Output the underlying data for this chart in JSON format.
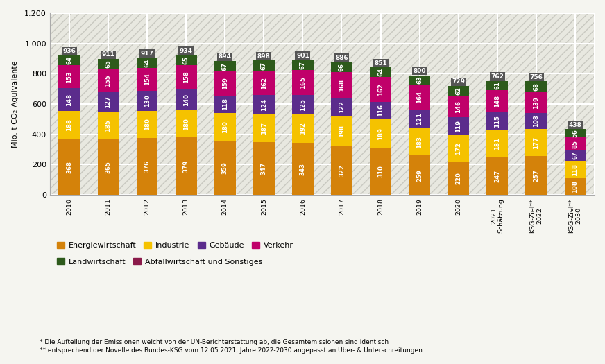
{
  "categories": [
    "2010",
    "2011",
    "2012",
    "2013",
    "2014",
    "2015",
    "2016",
    "2017",
    "2018",
    "2019",
    "2020",
    "2021\nSchätzung",
    "KSG-Ziel**\n2022",
    "KSG-Ziel**\n2030"
  ],
  "energiewirtschaft": [
    368,
    365,
    376,
    379,
    359,
    347,
    343,
    322,
    310,
    259,
    220,
    247,
    257,
    108
  ],
  "industrie": [
    188,
    185,
    180,
    180,
    180,
    187,
    192,
    198,
    189,
    183,
    172,
    181,
    177,
    118
  ],
  "gebaeude": [
    148,
    127,
    130,
    140,
    118,
    124,
    125,
    122,
    116,
    121,
    119,
    115,
    108,
    67
  ],
  "verkehr": [
    153,
    155,
    154,
    158,
    159,
    162,
    165,
    168,
    162,
    164,
    146,
    148,
    139,
    85
  ],
  "landwirtschaft": [
    64,
    65,
    64,
    65,
    67,
    67,
    67,
    66,
    64,
    63,
    62,
    61,
    68,
    56
  ],
  "totals": [
    936,
    911,
    917,
    934,
    894,
    898,
    901,
    886,
    851,
    800,
    729,
    762,
    756,
    438
  ],
  "colors": {
    "energiewirtschaft": "#D4820A",
    "industrie": "#F5C200",
    "gebaeude": "#5B2C8C",
    "verkehr": "#C0006A",
    "landwirtschaft": "#2D5A1B",
    "abfall": "#8B1A4A"
  },
  "ylabel": "Mio. t CO₂-Äquivalente",
  "ylim": [
    0,
    1200
  ],
  "yticks": [
    0,
    200,
    400,
    600,
    800,
    1000,
    1200
  ],
  "ytick_labels": [
    "0",
    "200",
    "400",
    "600",
    "800",
    "1.000",
    "1.200"
  ],
  "legend_labels": [
    "Energiewirtschaft",
    "Industrie",
    "Gebäude",
    "Verkehr",
    "Landwirtschaft",
    "Abfallwirtschaft und Sonstiges"
  ],
  "footnote1": "* Die Aufteilung der Emissionen weicht von der UN-Berichterstattung ab, die Gesamtemissionen sind identisch",
  "footnote2": "** entsprechend der Novelle des Bundes-KSG vom 12.05.2021, Jahre 2022-2030 angepasst an Über- & Unterschreitungen",
  "bg_color": "#e8e8e0",
  "hatch_color": "#c8c8c0",
  "grid_color": "#ffffff",
  "total_box_color": "#555555",
  "bar_width": 0.55
}
